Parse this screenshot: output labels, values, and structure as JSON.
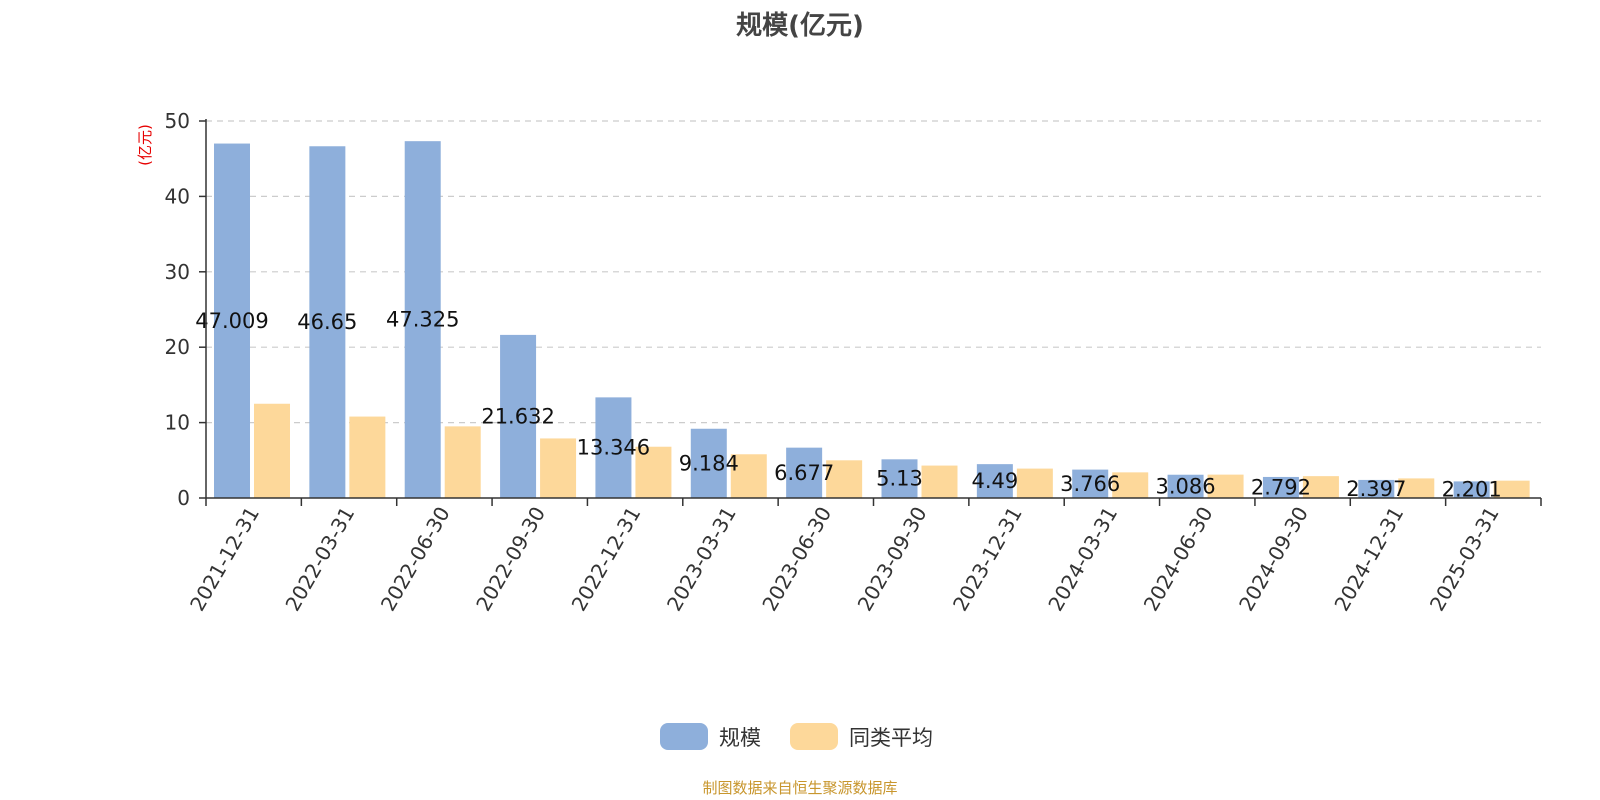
{
  "chart_data": {
    "type": "bar",
    "title": "规模(亿元)",
    "ylabel": "(亿元)",
    "ylim": [
      0,
      50
    ],
    "yticks": [
      0,
      10,
      20,
      30,
      40,
      50
    ],
    "grid": true,
    "legend_position": "bottom",
    "categories": [
      "2021-12-31",
      "2022-03-31",
      "2022-06-30",
      "2022-09-30",
      "2022-12-31",
      "2023-03-31",
      "2023-06-30",
      "2023-09-30",
      "2023-12-31",
      "2024-03-31",
      "2024-06-30",
      "2024-09-30",
      "2024-12-31",
      "2025-03-31"
    ],
    "series": [
      {
        "name": "规模",
        "color": "#8eafdb",
        "values": [
          47.009,
          46.65,
          47.325,
          21.632,
          13.346,
          9.184,
          6.677,
          5.13,
          4.49,
          3.766,
          3.086,
          2.792,
          2.397,
          2.201
        ],
        "labels": [
          "47.009",
          "46.65",
          "47.325",
          "21.632",
          "13.346",
          "9.184",
          "6.677",
          "5.13",
          "4.49",
          "3.766",
          "3.086",
          "2.792",
          "2.397",
          "2.201"
        ]
      },
      {
        "name": "同类平均",
        "color": "#fdd89a",
        "values": [
          12.5,
          10.8,
          9.5,
          7.9,
          6.8,
          5.8,
          5.0,
          4.3,
          3.9,
          3.4,
          3.1,
          2.9,
          2.6,
          2.3
        ]
      }
    ]
  },
  "source": "制图数据来自恒生聚源数据库"
}
